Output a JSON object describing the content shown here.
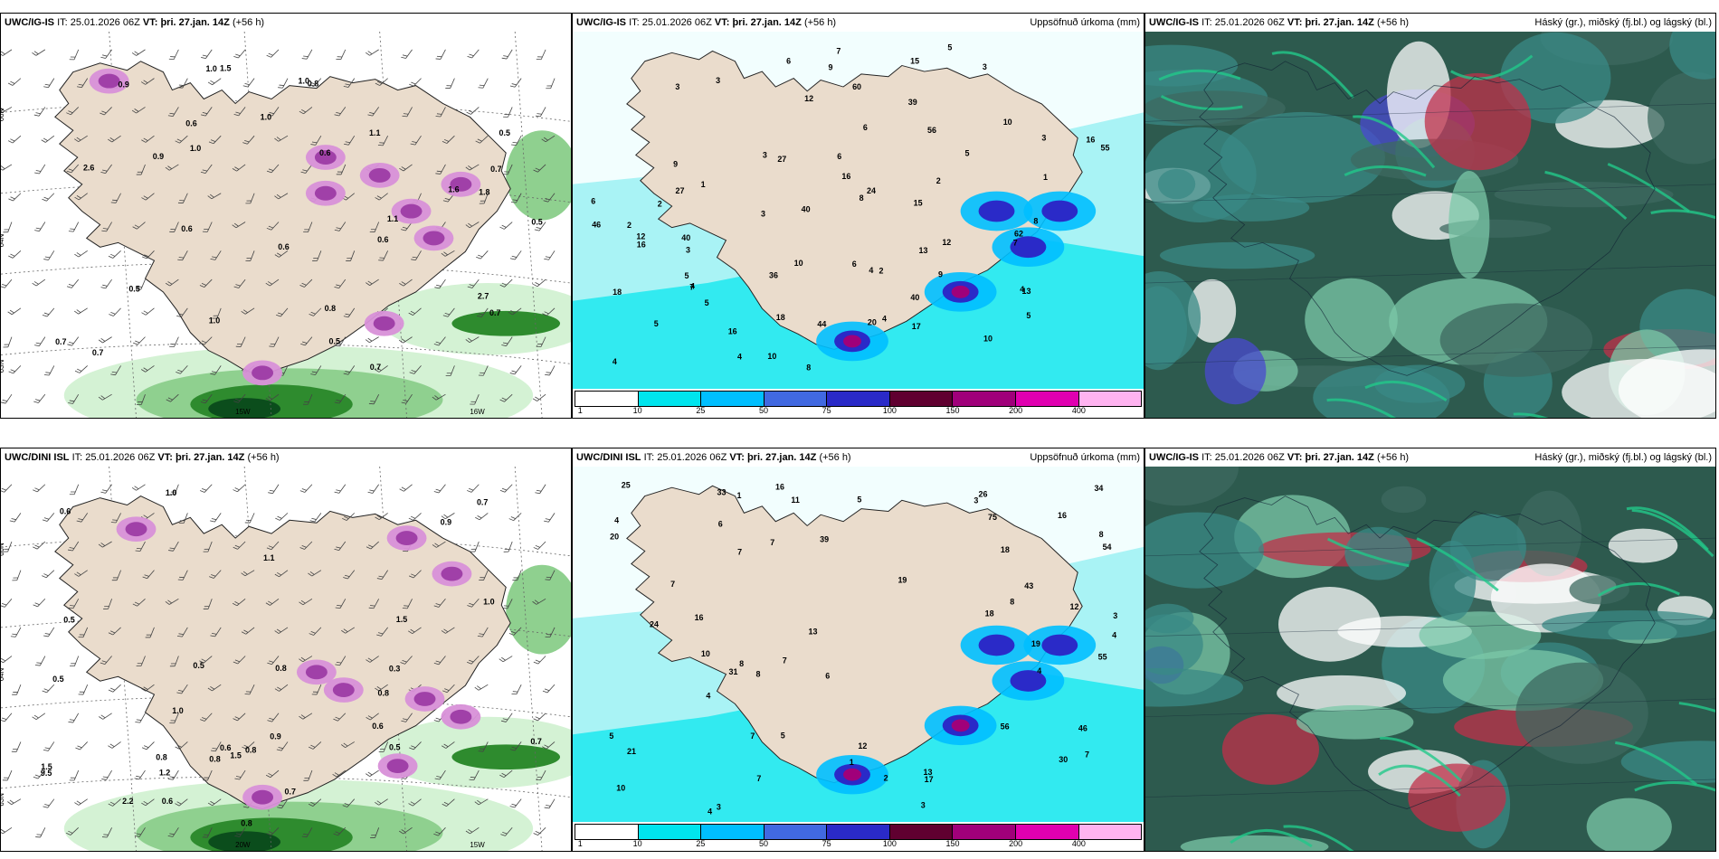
{
  "colors": {
    "land": "#eadccc",
    "sea_cyan": "#a9f3f5",
    "precip": [
      "#ffffff",
      "#00e5ee",
      "#00bfff",
      "#4169e1",
      "#2a2ac8",
      "#600030",
      "#a0007a",
      "#e000b0",
      "#ffb3f0"
    ],
    "snow_green": [
      "#d4f2d4",
      "#8fd08f",
      "#2e8b2e",
      "#0b4d1c"
    ],
    "cloud_dark": "#2d5a4e",
    "cloud_teal": "#3a8a86",
    "cloud_green": "#22c88a"
  },
  "panels": [
    {
      "id": "p1",
      "model": "UWC/IG-IS",
      "it_label": "IT:",
      "it": "25.01.2026 06Z",
      "vt_label": "VT:",
      "vt": "þri. 27.jan. 14Z",
      "lead": "(+56 h)",
      "right_title": "",
      "lat_labels": [
        "66N",
        "64N",
        "63N"
      ],
      "lon_labels": [
        "15W",
        "16W",
        "64N"
      ],
      "values": [
        "0.5",
        "0.9",
        "0.5",
        "1.0",
        "0.5",
        "0.7",
        "0.7",
        "1.5",
        "0.9",
        "0.6",
        "0.5",
        "1.0",
        "0.7",
        "0.8",
        "1.1",
        "0.8",
        "0.7",
        "0.6",
        "0.6",
        "1.0",
        "1.0",
        "1.1",
        "0.6",
        "1.0",
        "2.6",
        "2.7",
        "1.8",
        "1.6",
        "0.7",
        "0.6"
      ]
    },
    {
      "id": "p2",
      "model": "UWC/IG-IS",
      "it_label": "IT:",
      "it": "25.01.2026 06Z",
      "vt_label": "VT:",
      "vt": "þri. 27.jan. 14Z",
      "lead": "(+56 h)",
      "right_title": "Uppsöfnuð úrkoma (mm)",
      "legend_ticks": [
        "1",
        "10",
        "25",
        "50",
        "75",
        "100",
        "150",
        "200",
        "400"
      ],
      "values": [
        "5",
        "3",
        "3",
        "10",
        "4",
        "1",
        "3",
        "4",
        "3",
        "5",
        "2",
        "7",
        "9",
        "8",
        "8",
        "6",
        "5",
        "6",
        "7",
        "10",
        "17",
        "9",
        "12",
        "24",
        "16",
        "18",
        "12",
        "15",
        "6",
        "12",
        "9",
        "5",
        "4",
        "6",
        "13",
        "16",
        "16",
        "15",
        "56",
        "62",
        "55",
        "60",
        "44",
        "40",
        "46",
        "27",
        "13",
        "20",
        "36",
        "40",
        "27",
        "4",
        "6",
        "1",
        "3",
        "2",
        "3",
        "4",
        "3",
        "2",
        "4",
        "5",
        "39",
        "40",
        "10",
        "18",
        "5",
        "2",
        "8",
        "10",
        "7",
        "16"
      ]
    },
    {
      "id": "p3",
      "model": "UWC/IG-IS",
      "it_label": "IT:",
      "it": "25.01.2026 06Z",
      "vt_label": "VT:",
      "vt": "þri. 27.jan. 14Z",
      "lead": "(+56 h)",
      "right_title": "Háský (gr.), miðský (fj.bl.) og lágský (bl.)"
    },
    {
      "id": "p4",
      "model": "UWC/DINI ISL",
      "it_label": "IT:",
      "it": "25.01.2026 06Z",
      "vt_label": "VT:",
      "vt": "þri. 27.jan. 14Z",
      "lead": "(+56 h)",
      "right_title": "",
      "lat_labels": [
        "66N",
        "64N",
        "63N"
      ],
      "lon_labels": [
        "20W",
        "15W"
      ],
      "values": [
        "0.3",
        "1.2",
        "0.8",
        "1.5",
        "0.5",
        "0.5",
        "1.5",
        "1.0",
        "0.7",
        "0.6",
        "0.6",
        "1.1",
        "0.5",
        "1.5",
        "0.9",
        "0.8",
        "0.7",
        "0.6",
        "0.5",
        "2.2",
        "0.8",
        "1.0",
        "0.8",
        "0.9",
        "1.0",
        "0.8",
        "0.6",
        "0.7",
        "9.5",
        "0.8"
      ]
    },
    {
      "id": "p5",
      "model": "UWC/DINI ISL",
      "it_label": "IT:",
      "it": "25.01.2026 06Z",
      "vt_label": "VT:",
      "vt": "þri. 27.jan. 14Z",
      "lead": "(+56 h)",
      "right_title": "Uppsöfnuð úrkoma (mm)",
      "legend_ticks": [
        "1",
        "10",
        "25",
        "50",
        "75",
        "100",
        "150",
        "200",
        "400"
      ],
      "values": [
        "4",
        "3",
        "3",
        "3",
        "4",
        "1",
        "2",
        "1",
        "10",
        "12",
        "10",
        "8",
        "7",
        "5",
        "5",
        "4",
        "4",
        "5",
        "16",
        "17",
        "33",
        "13",
        "13",
        "39",
        "43",
        "75",
        "55",
        "56",
        "54",
        "24",
        "19",
        "11",
        "7",
        "7",
        "16",
        "18",
        "19",
        "16",
        "46",
        "34",
        "31",
        "20",
        "18",
        "30",
        "12",
        "7",
        "7",
        "3",
        "4",
        "25",
        "26",
        "21",
        "8",
        "7",
        "8",
        "6",
        "6",
        "7",
        "8"
      ]
    },
    {
      "id": "p6",
      "model": "UWC/IG-IS",
      "it_label": "IT:",
      "it": "25.01.2026 06Z",
      "vt_label": "VT:",
      "vt": "þri. 27.jan. 14Z",
      "lead": "(+56 h)",
      "right_title": "Háský (gr.), miðský (fj.bl.) og lágský (bl.)"
    }
  ]
}
